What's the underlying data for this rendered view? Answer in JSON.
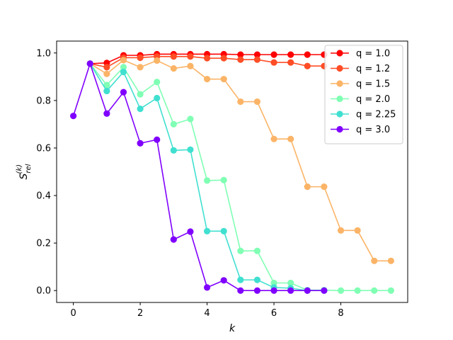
{
  "chart_data": {
    "type": "line",
    "title": "",
    "xlabel": "k",
    "ylabel": "S_rel^(k)",
    "ylabel_main": "S",
    "ylabel_sub": "rel",
    "ylabel_sup": "(k)",
    "xlim": [
      -0.5,
      10.0
    ],
    "ylim": [
      -0.05,
      1.05
    ],
    "xticks": [
      0,
      2,
      4,
      6,
      8
    ],
    "xtick_labels": [
      "0",
      "2",
      "4",
      "6",
      "8"
    ],
    "yticks": [
      0.0,
      0.2,
      0.4,
      0.6,
      0.8,
      1.0
    ],
    "ytick_labels": [
      "0.0",
      "0.2",
      "0.4",
      "0.6",
      "0.8",
      "1.0"
    ],
    "grid": false,
    "legend_position": "top-right",
    "series": [
      {
        "name": "q = 1.0",
        "color": "#ff0000",
        "x": [
          0.5,
          1.0,
          1.5,
          2.0,
          2.5,
          3.0,
          3.5,
          4.0,
          4.5,
          5.0,
          5.5,
          6.0,
          6.5,
          7.0,
          7.5
        ],
        "y": [
          0.955,
          0.958,
          0.99,
          0.99,
          0.995,
          0.995,
          0.995,
          0.995,
          0.995,
          0.993,
          0.993,
          0.993,
          0.993,
          0.993,
          0.993
        ]
      },
      {
        "name": "q = 1.2",
        "color": "#ff4d26",
        "x": [
          0.5,
          1.0,
          1.5,
          2.0,
          2.5,
          3.0,
          3.5,
          4.0,
          4.5,
          5.0,
          5.5,
          6.0,
          6.5,
          7.0,
          7.5
        ],
        "y": [
          0.955,
          0.94,
          0.98,
          0.98,
          0.985,
          0.985,
          0.985,
          0.978,
          0.978,
          0.972,
          0.972,
          0.96,
          0.96,
          0.945,
          0.945
        ]
      },
      {
        "name": "q = 1.5",
        "color": "#fbb467",
        "x": [
          0.5,
          1.0,
          1.5,
          2.0,
          2.5,
          3.0,
          3.5,
          4.0,
          4.5,
          5.0,
          5.5,
          6.0,
          6.5,
          7.0,
          7.5,
          8.0,
          8.5,
          9.0,
          9.5
        ],
        "y": [
          0.955,
          0.912,
          0.97,
          0.94,
          0.968,
          0.935,
          0.945,
          0.89,
          0.89,
          0.795,
          0.795,
          0.638,
          0.638,
          0.437,
          0.437,
          0.253,
          0.253,
          0.125,
          0.125
        ]
      },
      {
        "name": "q = 2.0",
        "color": "#80ffb4",
        "x": [
          0.5,
          1.0,
          1.5,
          2.0,
          2.5,
          3.0,
          3.5,
          4.0,
          4.5,
          5.0,
          5.5,
          6.0,
          6.5,
          7.0,
          7.5,
          8.0,
          8.5,
          9.0,
          9.5
        ],
        "y": [
          0.955,
          0.865,
          0.94,
          0.826,
          0.878,
          0.7,
          0.722,
          0.463,
          0.465,
          0.167,
          0.167,
          0.032,
          0.032,
          0.002,
          0.002,
          0.0,
          0.0,
          0.0,
          0.0
        ]
      },
      {
        "name": "q = 2.25",
        "color": "#40e0d0",
        "x": [
          0.5,
          1.0,
          1.5,
          2.0,
          2.5,
          3.0,
          3.5,
          4.0,
          4.5,
          5.0,
          5.5,
          6.0,
          6.5,
          7.0,
          7.5
        ],
        "y": [
          0.955,
          0.84,
          0.92,
          0.765,
          0.81,
          0.59,
          0.593,
          0.25,
          0.25,
          0.045,
          0.045,
          0.013,
          0.01,
          0.0,
          0.0
        ]
      },
      {
        "name": "q = 3.0",
        "color": "#8000ff",
        "x": [
          0.0,
          0.5,
          1.0,
          1.5,
          2.0,
          2.5,
          3.0,
          3.5,
          4.0,
          4.5,
          5.0,
          5.5,
          6.0,
          6.5,
          7.0,
          7.5
        ],
        "y": [
          0.735,
          0.955,
          0.745,
          0.835,
          0.62,
          0.635,
          0.215,
          0.248,
          0.013,
          0.043,
          0.0,
          0.0,
          0.0,
          0.0,
          0.0,
          0.0
        ]
      }
    ]
  }
}
